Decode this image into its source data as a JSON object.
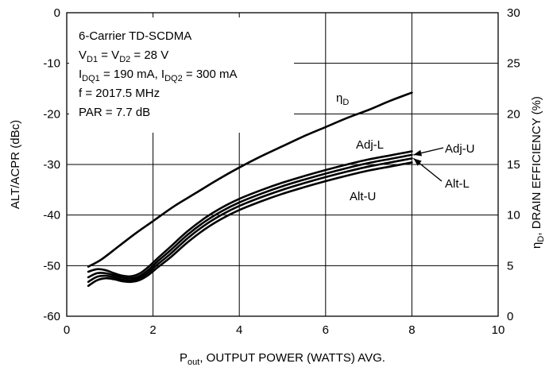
{
  "chart_data": {
    "type": "line",
    "xlabel": {
      "main": "P",
      "sub": "out",
      "rest": ", OUTPUT POWER (WATTS) AVG."
    },
    "ylabel_left": "ALT/ACPR (dBc)",
    "ylabel_right": {
      "main": "η",
      "sub": "D",
      "rest": ", DRAIN EFFICIENCY (%)"
    },
    "xlim": [
      0,
      10
    ],
    "ylim_left": [
      -60,
      0
    ],
    "ylim_right": [
      0,
      30
    ],
    "x_ticks": [
      "0",
      "2",
      "4",
      "6",
      "8",
      "10"
    ],
    "y_left_ticks": [
      "0",
      "-10",
      "-20",
      "-30",
      "-40",
      "-50",
      "-60"
    ],
    "y_right_ticks": [
      "30",
      "25",
      "20",
      "15",
      "10",
      "5",
      "0"
    ],
    "grid": true,
    "conditions": [
      {
        "parts": [
          {
            "t": "6-Carrier TD-SCDMA"
          }
        ]
      },
      {
        "parts": [
          {
            "t": "V"
          },
          {
            "t": "D1",
            "sub": true
          },
          {
            "t": " = V"
          },
          {
            "t": "D2",
            "sub": true
          },
          {
            "t": " = 28 V"
          }
        ]
      },
      {
        "parts": [
          {
            "t": "I"
          },
          {
            "t": "DQ1",
            "sub": true
          },
          {
            "t": " = 190 mA, I"
          },
          {
            "t": "DQ2",
            "sub": true
          },
          {
            "t": " = 300 mA"
          }
        ]
      },
      {
        "parts": [
          {
            "t": "f = 2017.5 MHz"
          }
        ]
      },
      {
        "parts": [
          {
            "t": "PAR = 7.7 dB"
          }
        ]
      }
    ],
    "series": [
      {
        "name": "ηD",
        "label": {
          "main": "η",
          "sub": "D"
        },
        "axis": "right",
        "x": [
          0.5,
          0.8,
          1.2,
          1.6,
          2.0,
          2.5,
          3.0,
          3.5,
          4.0,
          4.5,
          5.0,
          5.5,
          6.0,
          6.5,
          7.0,
          7.5,
          8.0
        ],
        "y": [
          4.9,
          5.6,
          6.9,
          8.2,
          9.4,
          10.9,
          12.2,
          13.5,
          14.7,
          15.8,
          16.8,
          17.8,
          18.7,
          19.6,
          20.4,
          21.3,
          22.1
        ]
      },
      {
        "name": "Adj-L",
        "label": {
          "main": "Adj-L"
        },
        "axis": "left",
        "x": [
          0.5,
          0.7,
          0.9,
          1.1,
          1.3,
          1.5,
          1.7,
          1.9,
          2.1,
          2.4,
          2.8,
          3.2,
          3.6,
          4.0,
          4.5,
          5.0,
          5.5,
          6.0,
          6.5,
          7.0,
          7.5,
          8.0
        ],
        "y": [
          -51.2,
          -50.7,
          -50.9,
          -51.5,
          -52.0,
          -52.1,
          -51.5,
          -50.2,
          -48.6,
          -46.3,
          -43.2,
          -40.6,
          -38.5,
          -36.8,
          -35.1,
          -33.6,
          -32.3,
          -31.1,
          -30.0,
          -29.0,
          -28.2,
          -27.4
        ]
      },
      {
        "name": "Adj-U",
        "label": {
          "main": "Adj-U"
        },
        "axis": "left",
        "x": [
          0.5,
          0.7,
          0.9,
          1.1,
          1.3,
          1.5,
          1.7,
          1.9,
          2.1,
          2.4,
          2.8,
          3.2,
          3.6,
          4.0,
          4.5,
          5.0,
          5.5,
          6.0,
          6.5,
          7.0,
          7.5,
          8.0
        ],
        "y": [
          -52.3,
          -51.5,
          -51.5,
          -51.9,
          -52.4,
          -52.5,
          -52.0,
          -50.8,
          -49.2,
          -47.0,
          -43.9,
          -41.3,
          -39.2,
          -37.5,
          -35.8,
          -34.3,
          -33.0,
          -31.8,
          -30.7,
          -29.7,
          -28.9,
          -28.1
        ]
      },
      {
        "name": "Alt-L",
        "label": {
          "main": "Alt-L"
        },
        "axis": "left",
        "x": [
          0.5,
          0.7,
          0.9,
          1.1,
          1.3,
          1.5,
          1.7,
          1.9,
          2.1,
          2.4,
          2.8,
          3.2,
          3.6,
          4.0,
          4.5,
          5.0,
          5.5,
          6.0,
          6.5,
          7.0,
          7.5,
          8.0
        ],
        "y": [
          -53.2,
          -52.2,
          -52.0,
          -52.3,
          -52.8,
          -52.9,
          -52.4,
          -51.3,
          -49.8,
          -47.7,
          -44.6,
          -42.0,
          -39.9,
          -38.2,
          -36.5,
          -35.0,
          -33.7,
          -32.5,
          -31.4,
          -30.4,
          -29.6,
          -28.8
        ]
      },
      {
        "name": "Alt-U",
        "label": {
          "main": "Alt-U"
        },
        "axis": "left",
        "x": [
          0.5,
          0.7,
          0.9,
          1.1,
          1.3,
          1.5,
          1.7,
          1.9,
          2.1,
          2.4,
          2.8,
          3.2,
          3.6,
          4.0,
          4.5,
          5.0,
          5.5,
          6.0,
          6.5,
          7.0,
          7.5,
          8.0
        ],
        "y": [
          -54.0,
          -52.9,
          -52.5,
          -52.7,
          -53.1,
          -53.2,
          -52.8,
          -51.8,
          -50.4,
          -48.4,
          -45.4,
          -42.8,
          -40.7,
          -39.0,
          -37.3,
          -35.8,
          -34.5,
          -33.3,
          -32.2,
          -31.2,
          -30.4,
          -29.6
        ]
      }
    ]
  }
}
